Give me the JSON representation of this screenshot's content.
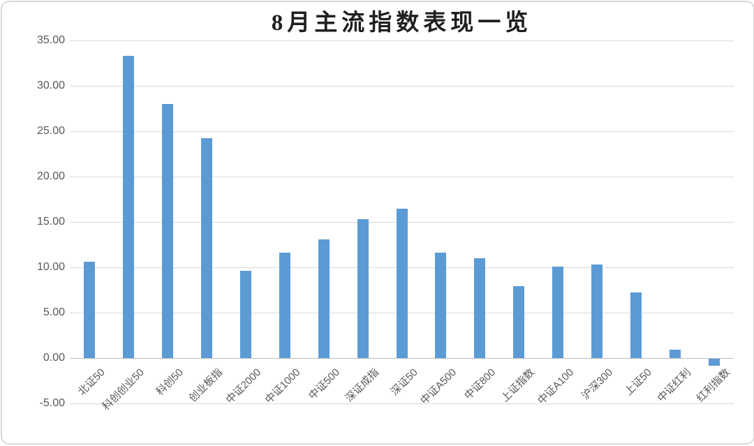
{
  "chart_data": {
    "type": "bar",
    "title": "8月主流指数表现一览",
    "categories": [
      "北证50",
      "科创创业50",
      "科创50",
      "创业板指",
      "中证2000",
      "中证1000",
      "中证500",
      "深证成指",
      "深证50",
      "中证A500",
      "中证800",
      "上证指数",
      "中证A100",
      "沪深300",
      "上证50",
      "中证红利",
      "红利指数"
    ],
    "values": [
      10.6,
      33.3,
      28.0,
      24.2,
      9.6,
      11.6,
      13.1,
      15.3,
      16.5,
      11.6,
      11.0,
      7.9,
      10.1,
      10.3,
      7.2,
      0.9,
      -0.8
    ],
    "xlabel": "",
    "ylabel": "",
    "ylim": [
      -5,
      35
    ],
    "ytick_interval": 5,
    "ytick_labels": [
      "35.00",
      "30.00",
      "25.00",
      "20.00",
      "15.00",
      "10.00",
      "5.00",
      "0.00",
      "-5.00"
    ],
    "grid": true,
    "legend": false,
    "bar_color": "#5B9BD5"
  },
  "colors": {
    "bar": "#5B9BD5",
    "gridline": "#D9D9D9",
    "zero_axis": "#BFBFBF",
    "tick_text": "#595959",
    "title_text": "#1F1F1F",
    "frame_border": "#D9D9D9",
    "background": "#FFFFFF"
  }
}
